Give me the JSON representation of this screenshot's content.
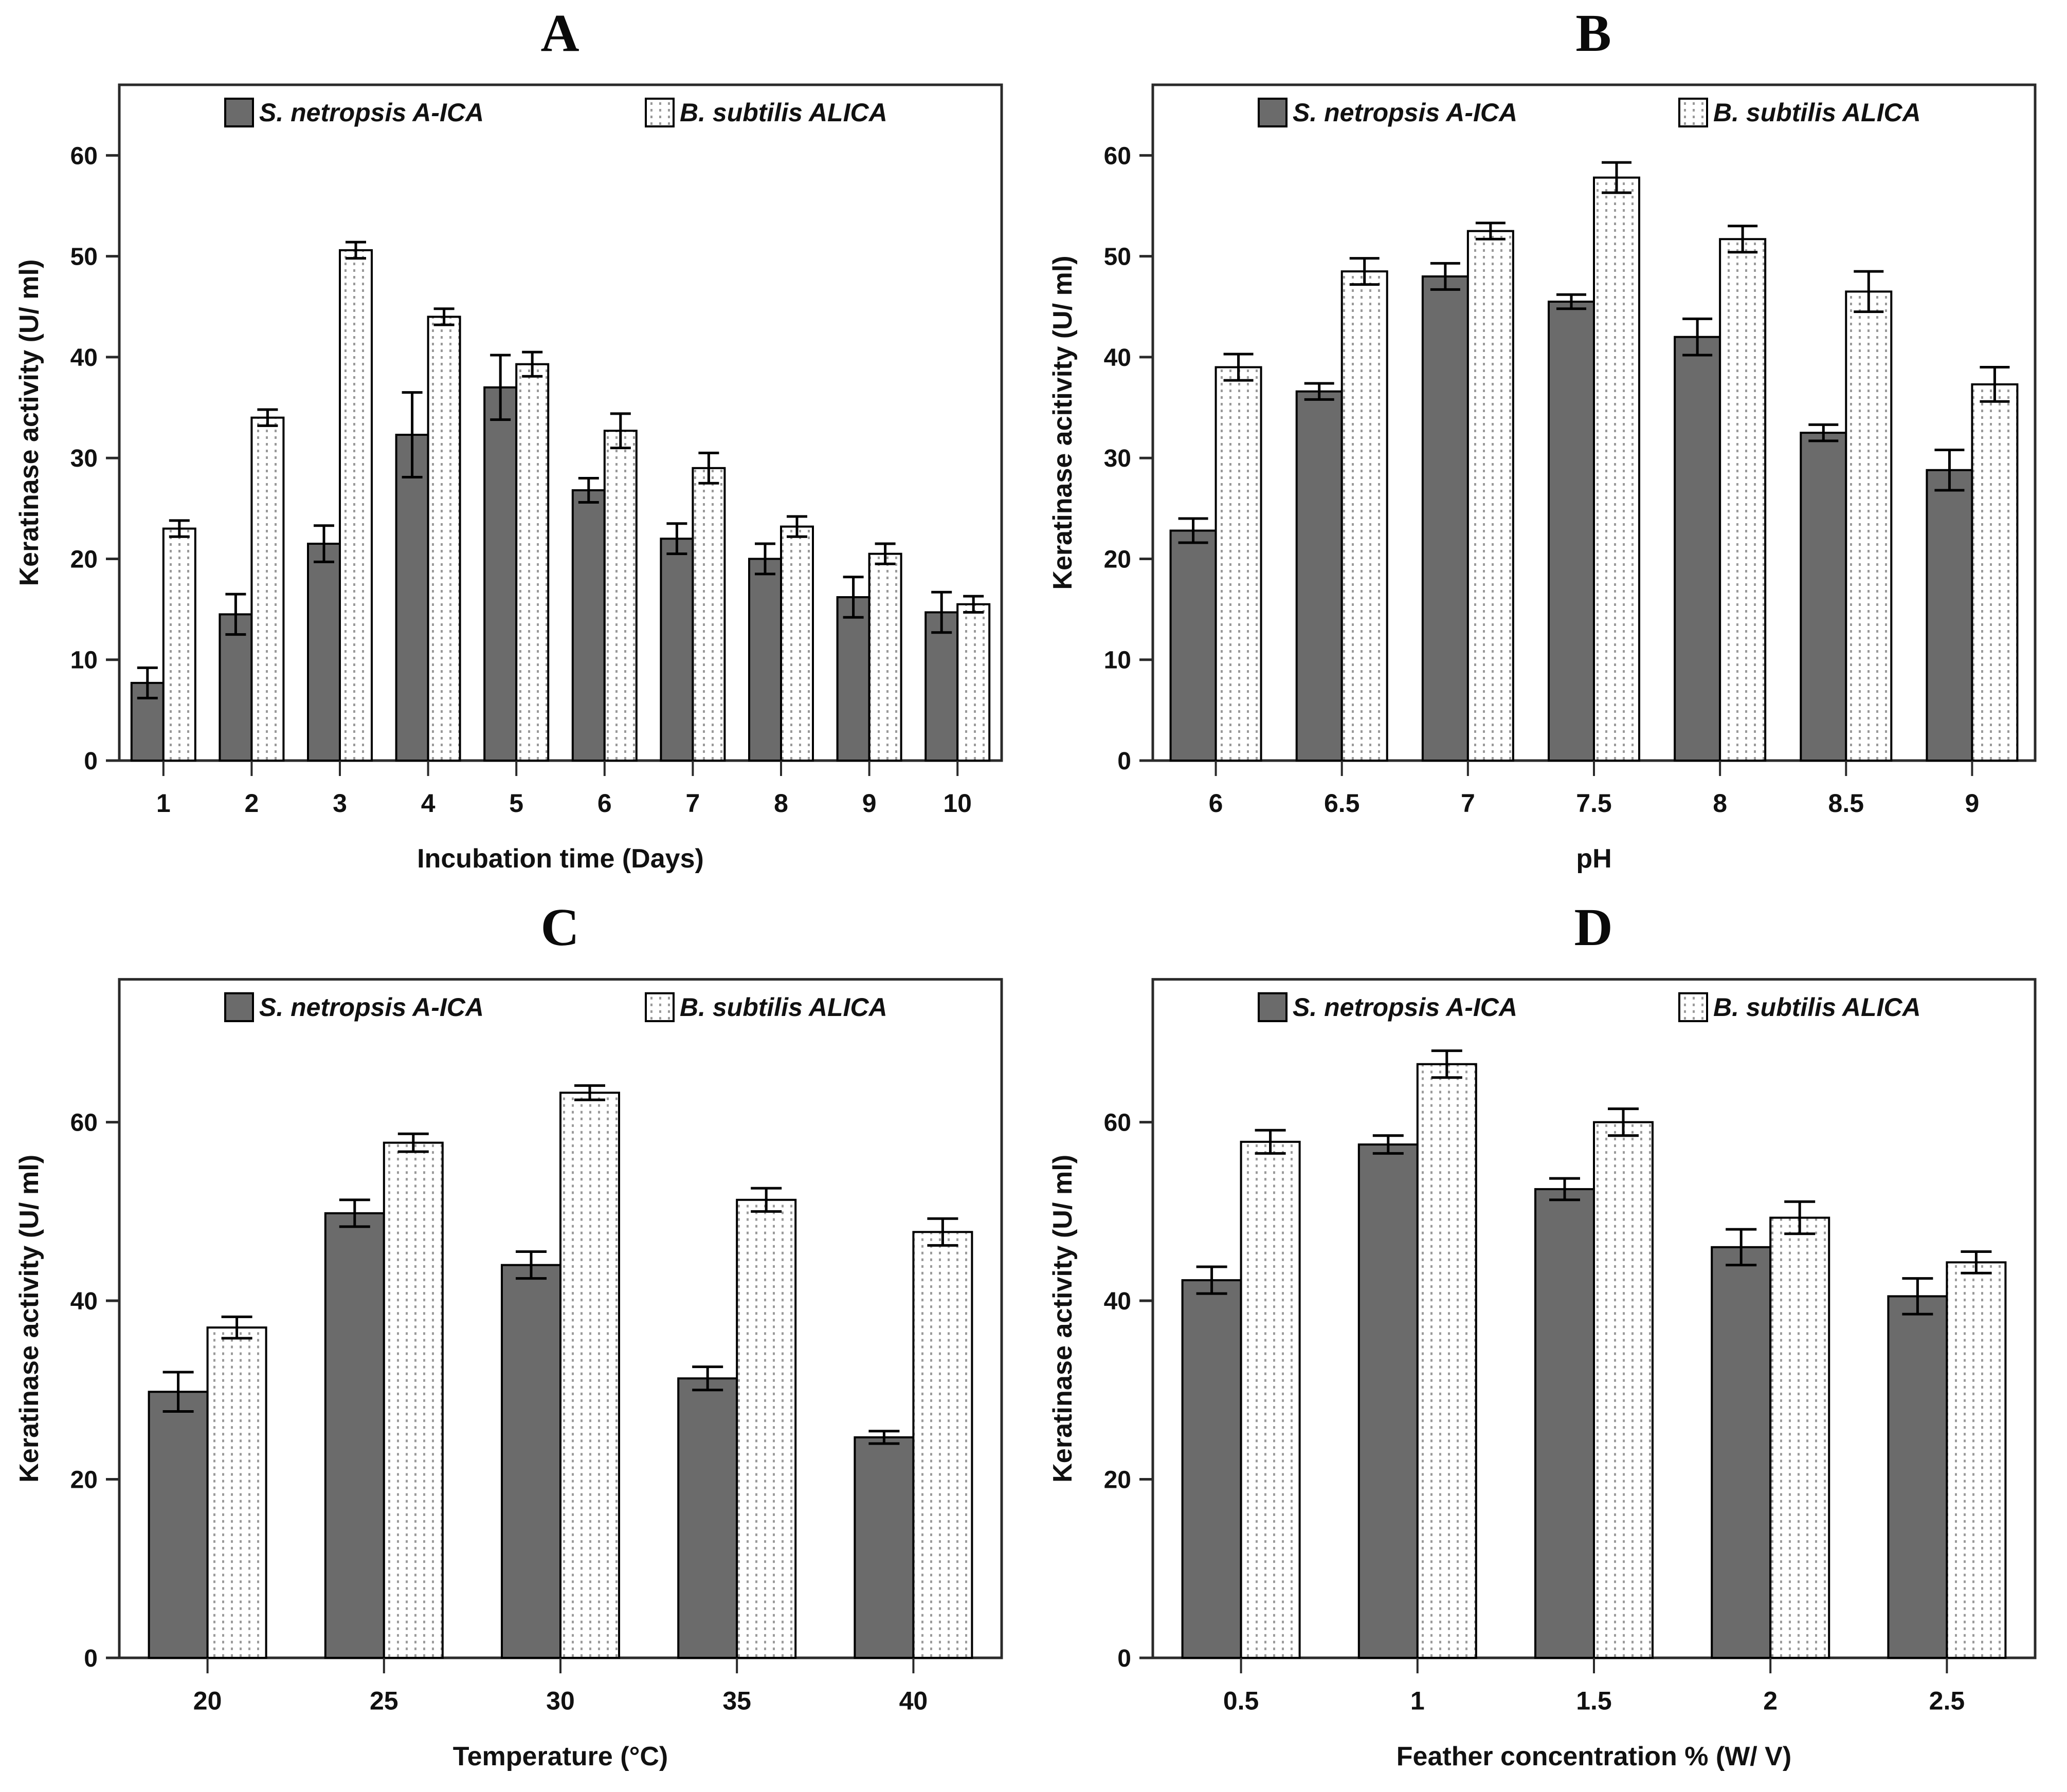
{
  "figure": {
    "background": "#ffffff",
    "bar_fill_dark": "#6b6b6b",
    "bar_fill_dotted": "#ffffff",
    "bar_dot_color": "#999999",
    "bar_border": "#000000",
    "axis_color": "#2a2a2a",
    "text_color": "#111111"
  },
  "legend": {
    "series1_label": "S. netropsis A-ICA",
    "series2_label": "B. subtilis ALICA",
    "swatch1_icon": "solid-gray-square",
    "swatch2_icon": "dotted-white-square"
  },
  "chart_data": [
    {
      "panel_label": "A",
      "type": "bar",
      "title": "A",
      "xlabel": "Incubation time (Days)",
      "ylabel": "Keratinase activity (U/ ml)",
      "categories": [
        "1",
        "2",
        "3",
        "4",
        "5",
        "6",
        "7",
        "8",
        "9",
        "10"
      ],
      "yticks": [
        0,
        10,
        20,
        30,
        40,
        50,
        60
      ],
      "ylim": [
        0,
        67
      ],
      "grid": false,
      "legend_position": "top-inside",
      "series": [
        {
          "name": "S. netropsis A-ICA",
          "style": "solid-gray",
          "values": [
            7.7,
            14.5,
            21.5,
            32.3,
            37.0,
            26.8,
            22.0,
            20.0,
            16.2,
            14.7
          ],
          "errors": [
            1.5,
            2.0,
            1.8,
            4.2,
            3.2,
            1.2,
            1.5,
            1.5,
            2.0,
            2.0
          ]
        },
        {
          "name": "B. subtilis ALICA",
          "style": "dotted-white",
          "values": [
            23.0,
            34.0,
            50.6,
            44.0,
            39.3,
            32.7,
            29.0,
            23.2,
            20.5,
            15.5
          ],
          "errors": [
            0.8,
            0.8,
            0.8,
            0.8,
            1.2,
            1.7,
            1.5,
            1.0,
            1.0,
            0.8
          ]
        }
      ]
    },
    {
      "panel_label": "B",
      "type": "bar",
      "title": "B",
      "xlabel": "pH",
      "ylabel": "Keratinase acitivity (U/ ml)",
      "categories": [
        "6",
        "6.5",
        "7",
        "7.5",
        "8",
        "8.5",
        "9"
      ],
      "yticks": [
        0,
        10,
        20,
        30,
        40,
        50,
        60
      ],
      "ylim": [
        0,
        67
      ],
      "grid": false,
      "legend_position": "top-inside",
      "series": [
        {
          "name": "S. netropsis A-ICA",
          "style": "solid-gray",
          "values": [
            22.8,
            36.6,
            48.0,
            45.5,
            42.0,
            32.5,
            28.8
          ],
          "errors": [
            1.2,
            0.8,
            1.3,
            0.7,
            1.8,
            0.8,
            2.0
          ]
        },
        {
          "name": "B. subtilis ALICA",
          "style": "dotted-white",
          "values": [
            39.0,
            48.5,
            52.5,
            57.8,
            51.7,
            46.5,
            37.3
          ],
          "errors": [
            1.3,
            1.3,
            0.8,
            1.5,
            1.3,
            2.0,
            1.7
          ]
        }
      ]
    },
    {
      "panel_label": "C",
      "type": "bar",
      "title": "C",
      "xlabel": "Temperature (°C)",
      "ylabel": "Keratinase activity (U/ ml)",
      "categories": [
        "20",
        "25",
        "30",
        "35",
        "40"
      ],
      "yticks": [
        0,
        20,
        40,
        60
      ],
      "ylim": [
        0,
        76
      ],
      "grid": false,
      "legend_position": "top-inside",
      "series": [
        {
          "name": "S. netropsis A-ICA",
          "style": "solid-gray",
          "values": [
            29.8,
            49.8,
            44.0,
            31.3,
            24.7
          ],
          "errors": [
            2.2,
            1.5,
            1.5,
            1.3,
            0.7
          ]
        },
        {
          "name": "B. subtilis ALICA",
          "style": "dotted-white",
          "values": [
            37.0,
            57.7,
            63.3,
            51.3,
            47.7
          ],
          "errors": [
            1.2,
            1.0,
            0.8,
            1.3,
            1.5
          ]
        }
      ]
    },
    {
      "panel_label": "D",
      "type": "bar",
      "title": "D",
      "xlabel": "Feather concentration % (W/ V)",
      "ylabel": "Keratinase activity (U/ ml)",
      "categories": [
        "0.5",
        "1",
        "1.5",
        "2",
        "2.5"
      ],
      "yticks": [
        0,
        20,
        40,
        60
      ],
      "ylim": [
        0,
        76
      ],
      "grid": false,
      "legend_position": "top-inside",
      "series": [
        {
          "name": "S. netropsis A-ICA",
          "style": "solid-gray",
          "values": [
            42.3,
            57.5,
            52.5,
            46.0,
            40.5
          ],
          "errors": [
            1.5,
            1.0,
            1.2,
            2.0,
            2.0
          ]
        },
        {
          "name": "B. subtilis ALICA",
          "style": "dotted-white",
          "values": [
            57.8,
            66.5,
            60.0,
            49.3,
            44.3
          ],
          "errors": [
            1.3,
            1.5,
            1.5,
            1.8,
            1.2
          ]
        }
      ]
    }
  ]
}
